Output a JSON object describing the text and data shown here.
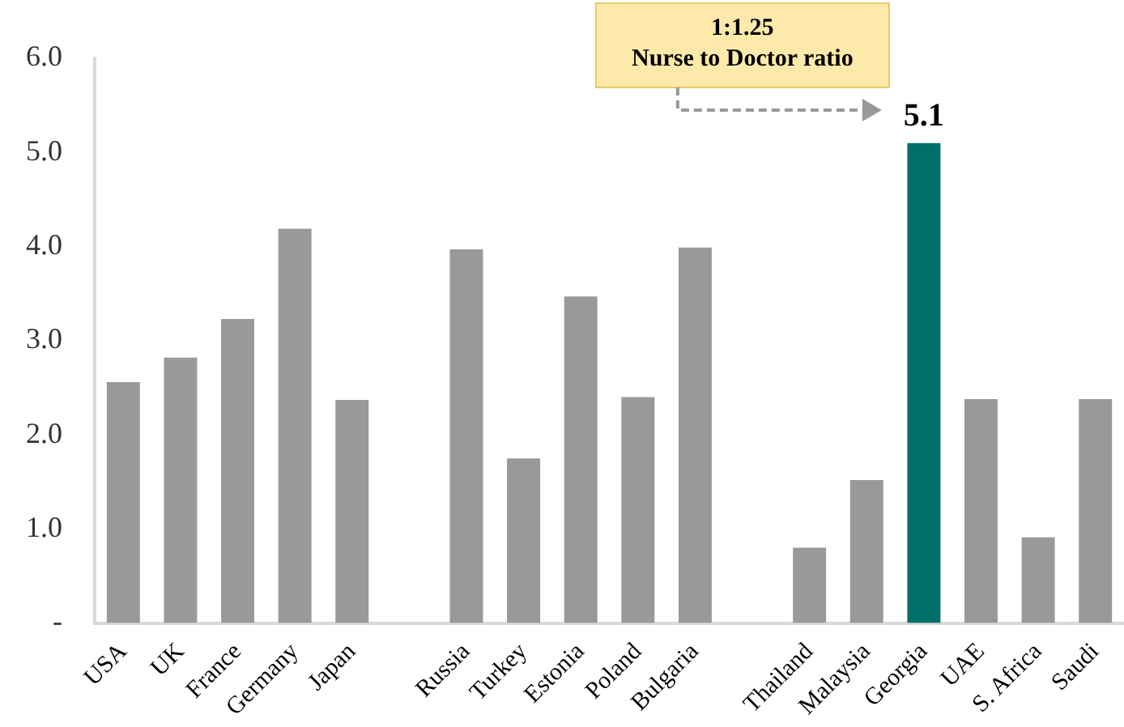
{
  "chart_data": {
    "type": "bar",
    "categories": [
      "USA",
      "UK",
      "France",
      "Germany",
      "Japan",
      null,
      "Russia",
      "Turkey",
      "Estonia",
      "Poland",
      "Bulgaria",
      null,
      "Thailand",
      "Malaysia",
      "Georgia",
      "UAE",
      "S. Africa",
      "Saudi"
    ],
    "values": [
      2.56,
      2.82,
      3.23,
      4.19,
      2.37,
      null,
      3.97,
      1.75,
      3.47,
      2.4,
      3.99,
      null,
      0.8,
      1.52,
      5.1,
      2.38,
      0.91,
      2.38
    ],
    "colors": [
      "#999999",
      "#999999",
      "#999999",
      "#999999",
      "#999999",
      "#999999",
      "#999999",
      "#999999",
      "#999999",
      "#999999",
      "#999999",
      "#999999",
      "#999999",
      "#999999",
      "#006f68",
      "#999999",
      "#999999",
      "#999999"
    ],
    "value_labels": [
      null,
      null,
      null,
      null,
      null,
      null,
      null,
      null,
      null,
      null,
      null,
      null,
      null,
      null,
      "5.1",
      null,
      null,
      null
    ],
    "annotations": [
      "1:1.25\nNurse to Doctor ratio"
    ],
    "ylim": [
      0,
      6
    ],
    "yticks": [
      {
        "value": 0,
        "label": "-"
      },
      {
        "value": 1,
        "label": "1.0"
      },
      {
        "value": 2,
        "label": "2.0"
      },
      {
        "value": 3,
        "label": "3.0"
      },
      {
        "value": 4,
        "label": "4.0"
      },
      {
        "value": 5,
        "label": "5.0"
      },
      {
        "value": 6,
        "label": "6.0"
      }
    ],
    "grid": false,
    "legend": false
  }
}
